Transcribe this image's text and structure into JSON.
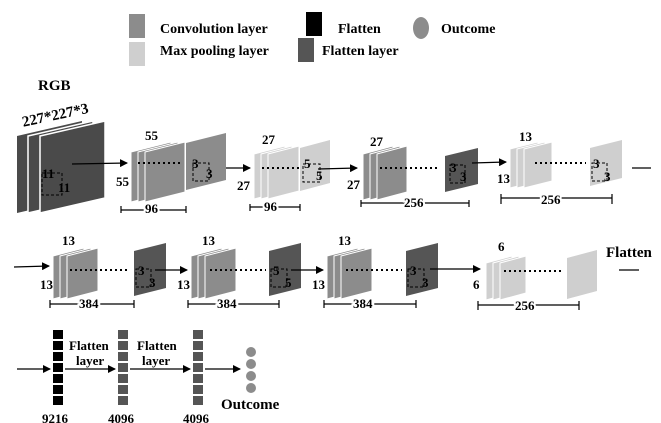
{
  "legend": {
    "convolution": "Convolution layer",
    "max_pooling": "Max pooling layer",
    "flatten": "Flatten",
    "flatten_layer": "Flatten layer",
    "outcome": "Outcome"
  },
  "colors": {
    "conv": "#8c8c8c",
    "pool": "#cfcfcf",
    "flatten_block": "#000000",
    "flatten_layer": "#555555",
    "input": "#4a4a4a",
    "outcome": "#8c8c8c"
  },
  "input": {
    "title": "RGB",
    "size": "227*227*3",
    "kernel_a": "11",
    "kernel_b": "11"
  },
  "row1": {
    "conv1": {
      "top": "55",
      "side": "55",
      "filters": "96",
      "k1": "3",
      "k2": "3"
    },
    "pool1": {
      "top": "27",
      "side": "27",
      "filters": "96",
      "k1": "5",
      "k2": "5"
    },
    "conv2": {
      "top": "27",
      "side": "27",
      "filters": "256",
      "k1": "3",
      "k2": "3"
    },
    "pool2": {
      "top": "13",
      "side": "13",
      "filters": "256",
      "k1": "3",
      "k2": "3"
    }
  },
  "row2": {
    "conv3": {
      "top": "13",
      "side": "13",
      "filters": "384",
      "k1": "3",
      "k2": "3"
    },
    "conv4": {
      "top": "13",
      "side": "13",
      "filters": "384",
      "k1": "5",
      "k2": "5"
    },
    "conv5": {
      "top": "13",
      "side": "13",
      "filters": "384",
      "k1": "3",
      "k2": "3"
    },
    "pool3": {
      "top": "6",
      "side": "6",
      "filters": "256"
    },
    "flatten_label": "Flatten"
  },
  "row3": {
    "fc1": {
      "count": "9216"
    },
    "fc2": {
      "count": "4096"
    },
    "fc3": {
      "count": "4096"
    },
    "flatten_label_1a": "Flatten",
    "flatten_label_1b": "layer",
    "flatten_label_2a": "Flatten",
    "flatten_label_2b": "layer",
    "outcome_label": "Outcome"
  }
}
